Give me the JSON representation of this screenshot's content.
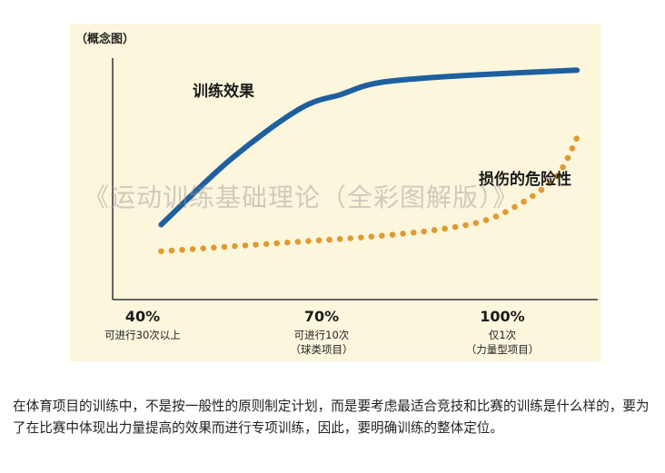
{
  "chart_data": {
    "type": "line",
    "title": "（概念图）",
    "xlabel": "",
    "ylabel": "",
    "grid": false,
    "legend": "none",
    "x_categories": [
      {
        "label": "40%",
        "sub": [
          "可进行30次以上"
        ]
      },
      {
        "label": "70%",
        "sub": [
          "可进行10次",
          "（球类项目）"
        ]
      },
      {
        "label": "100%",
        "sub": [
          "仅1次",
          "（力量型项目）"
        ]
      }
    ],
    "series": [
      {
        "name": "训练效果",
        "style": "solid",
        "color": "#1f5f9f",
        "points": [
          [
            40,
            31
          ],
          [
            50,
            58
          ],
          [
            60,
            79
          ],
          [
            66,
            85
          ],
          [
            70,
            89
          ],
          [
            75,
            91
          ],
          [
            85,
            93
          ],
          [
            100,
            95
          ]
        ]
      },
      {
        "name": "损伤的危险性",
        "style": "dotted",
        "color": "#e09a30",
        "points": [
          [
            40,
            20
          ],
          [
            50,
            22
          ],
          [
            60,
            24
          ],
          [
            70,
            26
          ],
          [
            80,
            29
          ],
          [
            87,
            33
          ],
          [
            92,
            40
          ],
          [
            96,
            48
          ],
          [
            98,
            55
          ],
          [
            100,
            67
          ]
        ]
      }
    ],
    "xlim": [
      33,
      103
    ],
    "ylim": [
      0,
      100
    ]
  },
  "watermark": "《运动训练基础理论（全彩图解版）》",
  "caption": "在体育项目的训练中，不是按一般性的原则制定计划，而是要考虑最适合竞技和比赛的训练是什么样的，要为了在比赛中体现出力量提高的效果而进行专项训练，因此，要明确训练的整体定位。"
}
